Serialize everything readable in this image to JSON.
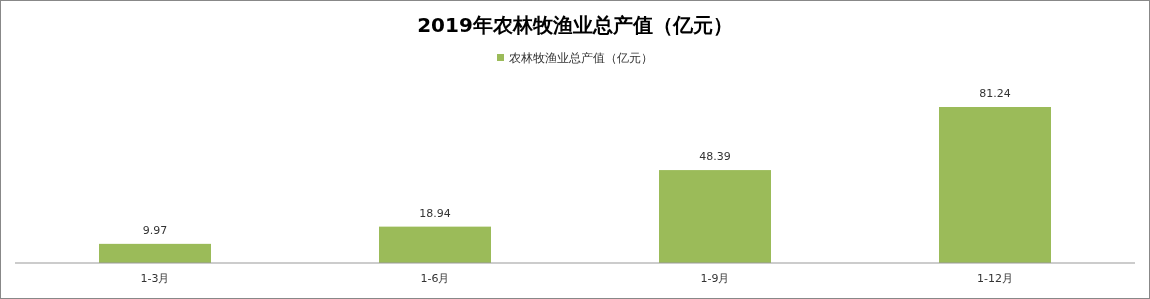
{
  "chart_data": {
    "type": "bar",
    "title": "2019年农林牧渔业总产值（亿元）",
    "categories": [
      "1-3月",
      "1-6月",
      "1-9月",
      "1-12月"
    ],
    "series": [
      {
        "name": "农林牧渔业总产值（亿元）",
        "color": "#9bbb59",
        "values": [
          9.97,
          18.94,
          48.39,
          81.24
        ]
      }
    ],
    "data_labels": true,
    "legend": "top"
  }
}
